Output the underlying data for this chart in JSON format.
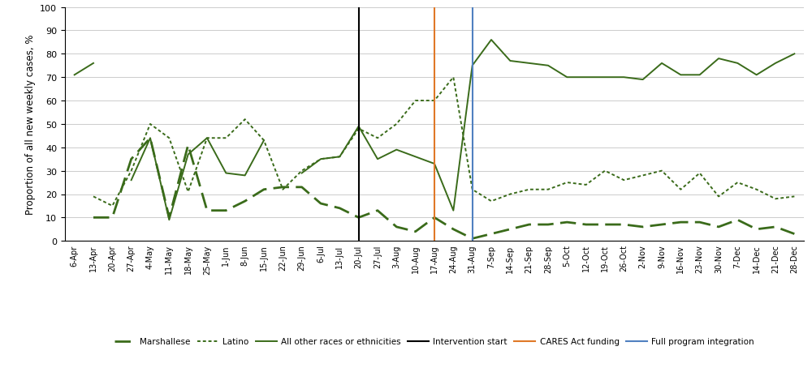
{
  "x_labels": [
    "6-Apr",
    "13-Apr",
    "20-Apr",
    "27-Apr",
    "4-May",
    "11-May",
    "18-May",
    "25-May",
    "1-Jun",
    "8-Jun",
    "15-Jun",
    "22-Jun",
    "29-Jun",
    "6-Jul",
    "13-Jul",
    "20-Jul",
    "27-Jul",
    "3-Aug",
    "10-Aug",
    "17-Aug",
    "24-Aug",
    "31-Aug",
    "7-Sep",
    "14-Sep",
    "21-Sep",
    "28-Sep",
    "5-Oct",
    "12-Oct",
    "19-Oct",
    "26-Oct",
    "2-Nov",
    "9-Nov",
    "16-Nov",
    "23-Nov",
    "30-Nov",
    "7-Dec",
    "14-Dec",
    "21-Dec",
    "28-Dec"
  ],
  "marshallese": [
    null,
    10,
    10,
    35,
    44,
    10,
    41,
    13,
    13,
    17,
    22,
    23,
    23,
    16,
    14,
    10,
    13,
    6,
    4,
    10,
    5,
    1,
    3,
    5,
    7,
    7,
    8,
    7,
    7,
    7,
    6,
    7,
    8,
    8,
    6,
    9,
    5,
    6,
    3
  ],
  "latino": [
    null,
    19,
    15,
    30,
    50,
    44,
    21,
    44,
    44,
    52,
    43,
    22,
    30,
    35,
    36,
    48,
    44,
    50,
    60,
    60,
    70,
    22,
    17,
    20,
    22,
    22,
    25,
    24,
    30,
    26,
    28,
    30,
    22,
    29,
    19,
    25,
    22,
    18,
    19
  ],
  "other": [
    71,
    76,
    null,
    26,
    44,
    9,
    37,
    44,
    29,
    28,
    43,
    null,
    29,
    35,
    36,
    49,
    35,
    39,
    36,
    33,
    13,
    75,
    86,
    77,
    76,
    75,
    70,
    70,
    70,
    70,
    69,
    76,
    71,
    71,
    78,
    76,
    71,
    76,
    80
  ],
  "intervention_idx": 15,
  "cares_idx": 19,
  "fullprog_idx": 21,
  "color": "#3a6b1a",
  "ylabel": "Proportion of all new weekly cases, %",
  "ylim": [
    0,
    100
  ],
  "yticks": [
    0,
    10,
    20,
    30,
    40,
    50,
    60,
    70,
    80,
    90,
    100
  ],
  "intervention_color": "#000000",
  "cares_color": "#e07828",
  "fullprog_color": "#5080c0"
}
